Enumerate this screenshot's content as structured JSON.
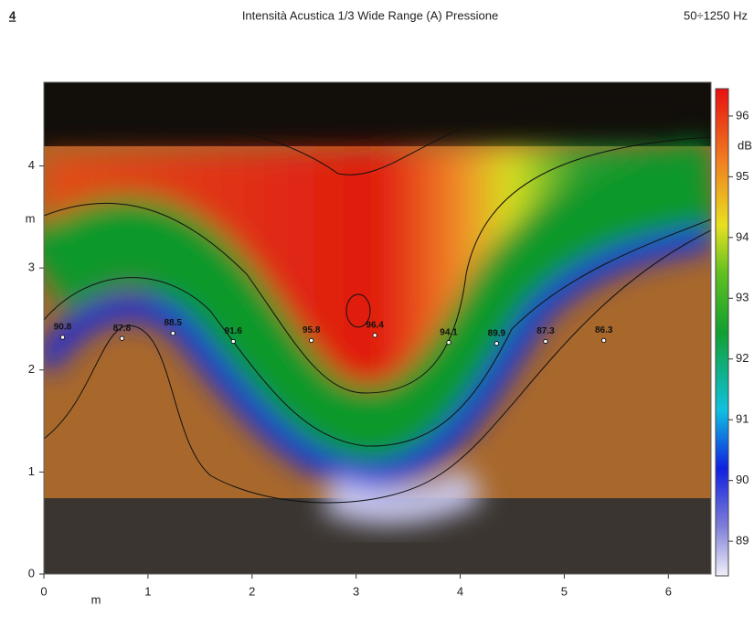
{
  "header": {
    "page": "4",
    "title": "Intensità Acustica 1/3 Wide Range (A) Pressione",
    "band": "50÷1250 Hz"
  },
  "chart_data": {
    "type": "scatter",
    "x_label": "m",
    "y_label": "m",
    "xlim": [
      0,
      6.41
    ],
    "ylim": [
      0,
      4.82
    ],
    "xticks": [
      0,
      1,
      2,
      3,
      4,
      5,
      6
    ],
    "yticks": [
      0,
      1,
      2,
      3,
      4
    ],
    "x": [
      0.18,
      0.75,
      1.24,
      1.82,
      2.57,
      3.18,
      3.89,
      4.35,
      4.82,
      5.38
    ],
    "y": [
      2.32,
      2.31,
      2.36,
      2.28,
      2.29,
      2.34,
      2.27,
      2.26,
      2.28,
      2.29
    ],
    "values": [
      90.8,
      87.8,
      88.5,
      91.6,
      95.8,
      96.4,
      94.1,
      89.9,
      87.3,
      86.3
    ],
    "colorbar": {
      "label": "dB",
      "clim": [
        88.43,
        96.45
      ],
      "ticks": [
        89,
        90,
        91,
        92,
        93,
        94,
        95,
        96
      ]
    }
  }
}
